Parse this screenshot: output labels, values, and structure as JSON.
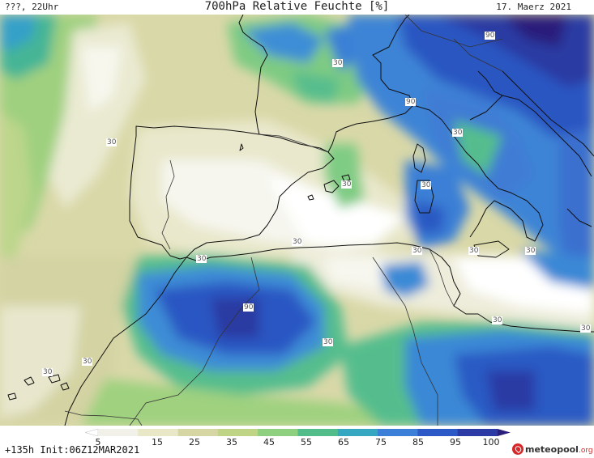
{
  "header": {
    "left": "???, 22Uhr",
    "title": "700hPa Relative Feuchte [%]",
    "right": "17. Maerz 2021"
  },
  "contour_labels": [
    "90",
    "30",
    "90",
    "30",
    "30",
    "30",
    "30",
    "30",
    "30",
    "30",
    "30",
    "90",
    "30",
    "30",
    "30",
    "30",
    "30",
    "30"
  ],
  "colorbar": {
    "ticks": [
      "5",
      "15",
      "25",
      "35",
      "45",
      "55",
      "65",
      "75",
      "85",
      "95",
      "100"
    ],
    "colors": [
      "#ffffff",
      "#f1f1ea",
      "#e8e7c6",
      "#d6d6a4",
      "#bfd585",
      "#8fcf80",
      "#52bc8a",
      "#35a7c0",
      "#3b7fd8",
      "#2c59c5",
      "#2b3aa4",
      "#2a1f7a"
    ]
  },
  "footer": {
    "run_info": "+135h Init:06Z12MAR2021",
    "brand": "meteopool",
    "brand_suffix": ".org"
  }
}
